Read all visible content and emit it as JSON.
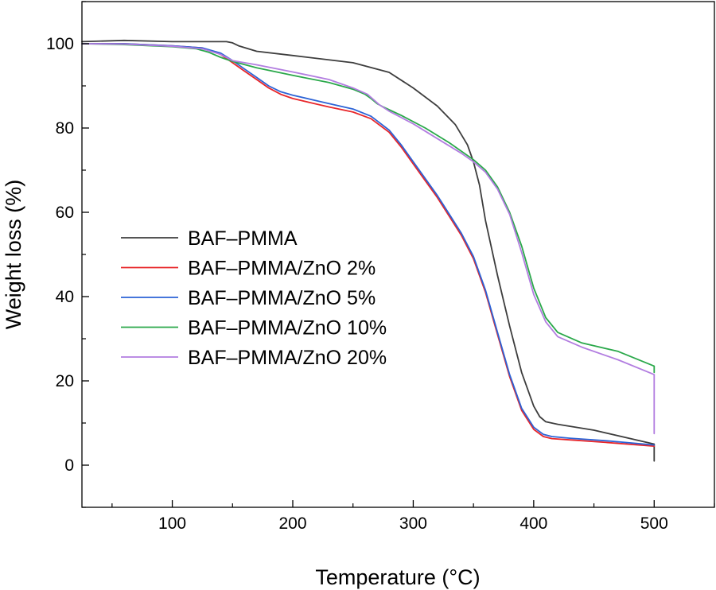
{
  "chart_data": {
    "type": "line",
    "title": "",
    "xlabel": "Temperature (°C)",
    "ylabel": "Weight loss (%)",
    "xlim": [
      25,
      550
    ],
    "ylim": [
      -10,
      110
    ],
    "xticks": [
      100,
      200,
      300,
      400,
      500
    ],
    "yticks": [
      0,
      20,
      40,
      60,
      80,
      100
    ],
    "grid": false,
    "legend_position": "center-left",
    "series": [
      {
        "name": "BAF–PMMA",
        "color": "#3d3d3d",
        "x": [
          25,
          60,
          100,
          145,
          150,
          155,
          170,
          200,
          250,
          280,
          300,
          320,
          335,
          345,
          350,
          355,
          360,
          370,
          380,
          390,
          400,
          405,
          410,
          420,
          450,
          500,
          500
        ],
        "y": [
          100.5,
          100.8,
          100.5,
          100.5,
          100.2,
          99.5,
          98.2,
          97.2,
          95.5,
          93.2,
          89.5,
          85.2,
          80.8,
          76.0,
          72.0,
          66.5,
          58.0,
          45.0,
          33.0,
          22.0,
          14.0,
          11.5,
          10.3,
          9.7,
          8.3,
          5.0,
          1.0
        ]
      },
      {
        "name": "BAF–PMMA/ZnO 2%",
        "color": "#e8262a",
        "x": [
          25,
          60,
          100,
          125,
          140,
          150,
          160,
          170,
          180,
          190,
          200,
          215,
          230,
          250,
          265,
          280,
          290,
          300,
          310,
          320,
          330,
          340,
          350,
          360,
          370,
          380,
          390,
          400,
          408,
          415,
          430,
          460,
          500
        ],
        "y": [
          100,
          100,
          99.5,
          99,
          97.5,
          95.5,
          93.5,
          91.5,
          89.5,
          88,
          87,
          86,
          85,
          83.8,
          82.2,
          79,
          75.5,
          71.5,
          67.5,
          63.5,
          59,
          54.5,
          49,
          41,
          31,
          21,
          13,
          8.5,
          6.8,
          6.3,
          6.0,
          5.4,
          4.5
        ]
      },
      {
        "name": "BAF–PMMA/ZnO 5%",
        "color": "#2c63d6",
        "x": [
          25,
          60,
          100,
          125,
          140,
          150,
          160,
          170,
          180,
          190,
          200,
          215,
          230,
          250,
          265,
          280,
          290,
          300,
          310,
          320,
          330,
          340,
          350,
          360,
          370,
          380,
          390,
          400,
          408,
          415,
          430,
          460,
          500
        ],
        "y": [
          100,
          100,
          99.5,
          99,
          97.8,
          96,
          94,
          92,
          90,
          88.6,
          87.8,
          86.8,
          85.8,
          84.5,
          82.8,
          79.5,
          76,
          72,
          68,
          64,
          59.5,
          55,
          49.5,
          41.5,
          31.5,
          21.5,
          13.5,
          9,
          7.3,
          6.8,
          6.4,
          5.8,
          4.8
        ]
      },
      {
        "name": "BAF–PMMA/ZnO 10%",
        "color": "#2aa84a",
        "x": [
          25,
          60,
          100,
          120,
          130,
          140,
          150,
          170,
          200,
          230,
          250,
          260,
          265,
          270,
          275,
          290,
          310,
          330,
          350,
          360,
          370,
          380,
          390,
          400,
          410,
          420,
          440,
          470,
          500,
          500
        ],
        "y": [
          100,
          99.8,
          99.3,
          98.8,
          98,
          96.8,
          95.8,
          94.3,
          92.5,
          90.8,
          89.2,
          88,
          87,
          85.8,
          85,
          83,
          80,
          76.5,
          72.5,
          70,
          66,
          60,
          52,
          42,
          35,
          31.5,
          29,
          27,
          23.5,
          22
        ]
      },
      {
        "name": "BAF–PMMA/ZnO 20%",
        "color": "#b27de0",
        "x": [
          25,
          60,
          100,
          125,
          140,
          150,
          160,
          170,
          200,
          230,
          250,
          262,
          268,
          272,
          280,
          300,
          320,
          340,
          350,
          360,
          370,
          380,
          390,
          400,
          410,
          420,
          440,
          470,
          500,
          500
        ],
        "y": [
          100,
          99.9,
          99.4,
          98.8,
          97.5,
          96,
          95.5,
          95,
          93.3,
          91.5,
          89.5,
          88,
          86.5,
          85.5,
          84,
          81,
          77.5,
          74,
          72,
          69.5,
          65.5,
          59.5,
          50.5,
          40.5,
          34,
          30.5,
          28,
          25,
          21.5,
          7.5
        ]
      }
    ]
  }
}
